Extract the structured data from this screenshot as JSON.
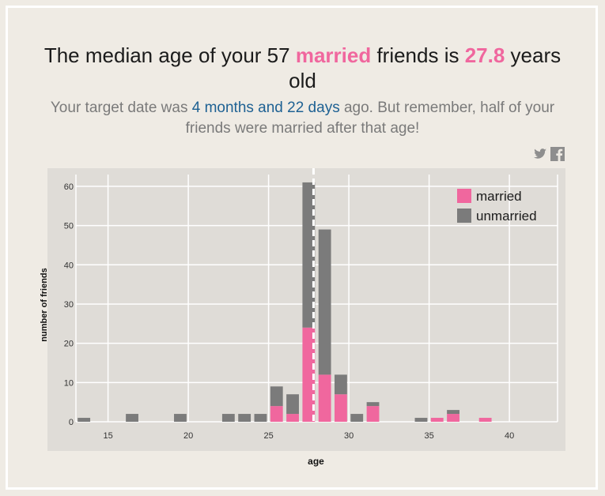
{
  "headline": {
    "prefix": "The median age of your 57 ",
    "highlight_word": "married",
    "middle": " friends is ",
    "median_value": "27.8",
    "suffix": " years old"
  },
  "subline": {
    "prefix": "Your target date was ",
    "date_text": "4 months and 22 days",
    "suffix": " ago. But remember, half of your friends were married after that age!"
  },
  "share": {
    "twitter_icon": "twitter-icon",
    "facebook_icon": "facebook-icon"
  },
  "colors": {
    "married": "#f0679e",
    "unmarried": "#7b7b7b",
    "accent_blue": "#1e6193",
    "plot_bg": "#dfdcd7"
  },
  "chart_data": {
    "type": "bar",
    "stacked": true,
    "xlabel": "age",
    "ylabel": "number of friends",
    "xlim": [
      13,
      43
    ],
    "ylim": [
      0,
      63
    ],
    "x_ticks": [
      15,
      20,
      25,
      30,
      35,
      40
    ],
    "y_ticks": [
      0,
      10,
      20,
      30,
      40,
      50,
      60
    ],
    "median_line": 27.8,
    "legend": "top-right",
    "bin_starts": [
      13,
      14,
      15,
      16,
      17,
      18,
      19,
      20,
      21,
      22,
      23,
      24,
      25,
      26,
      27,
      28,
      29,
      30,
      31,
      32,
      33,
      34,
      35,
      36,
      37,
      38,
      39
    ],
    "series": [
      {
        "name": "married",
        "values": [
          0,
          0,
          0,
          0,
          0,
          0,
          0,
          0,
          0,
          0,
          0,
          0,
          4,
          2,
          24,
          12,
          7,
          0,
          4,
          0,
          0,
          0,
          1,
          2,
          0,
          1,
          0
        ]
      },
      {
        "name": "unmarried",
        "values": [
          1,
          0,
          0,
          2,
          0,
          0,
          2,
          0,
          0,
          2,
          2,
          2,
          5,
          5,
          37,
          37,
          5,
          2,
          1,
          0,
          0,
          1,
          0,
          1,
          0,
          0,
          0
        ]
      }
    ]
  }
}
